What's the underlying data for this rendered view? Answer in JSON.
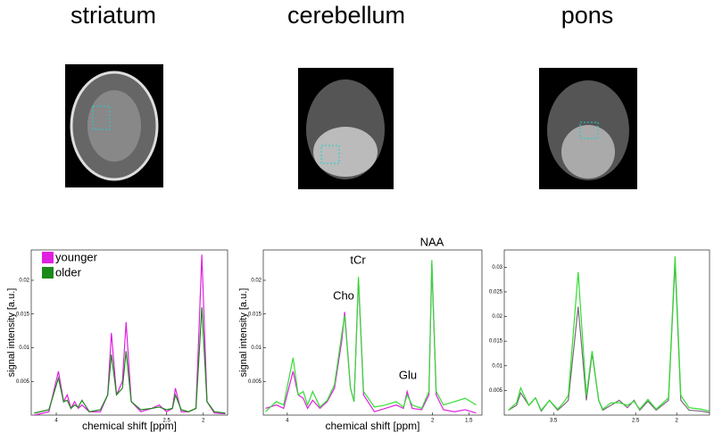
{
  "chart_data": [
    {
      "type": "line",
      "title": "striatum",
      "xlabel": "chemical shift [ppm]",
      "ylabel": "signal intensity [a.u.]",
      "x": [
        4.3,
        4.1,
        3.97,
        3.9,
        3.85,
        3.8,
        3.75,
        3.7,
        3.65,
        3.55,
        3.4,
        3.3,
        3.25,
        3.18,
        3.1,
        3.05,
        2.98,
        2.85,
        2.7,
        2.6,
        2.5,
        2.42,
        2.38,
        2.3,
        2.2,
        2.1,
        2.02,
        1.95,
        1.85,
        1.7
      ],
      "series": [
        {
          "name": "younger",
          "color": "#e020e0",
          "values": [
            0,
            0.0005,
            0.0065,
            0.002,
            0.003,
            0.001,
            0.002,
            0.001,
            0.0015,
            0.0005,
            0.0005,
            0.003,
            0.0122,
            0.003,
            0.005,
            0.0138,
            0.002,
            0.0005,
            0.001,
            0.0015,
            0.0005,
            0.001,
            0.004,
            0.0005,
            0.0005,
            0.001,
            0.0238,
            0.002,
            0.0003,
            0.0002
          ]
        },
        {
          "name": "older",
          "color": "#1a8a1a",
          "values": [
            0.0003,
            0.0008,
            0.0055,
            0.002,
            0.0022,
            0.001,
            0.0015,
            0.0012,
            0.0022,
            0.0005,
            0.0008,
            0.003,
            0.009,
            0.003,
            0.004,
            0.0095,
            0.002,
            0.0008,
            0.001,
            0.0012,
            0.0008,
            0.001,
            0.003,
            0.0008,
            0.0005,
            0.001,
            0.016,
            0.002,
            0.0005,
            0.0003
          ]
        }
      ],
      "xlim": [
        4.34,
        1.67
      ],
      "xticks": [
        4,
        2.5,
        2
      ],
      "ylim": [
        0,
        0.0245
      ],
      "yticks": [
        0.005,
        0.01,
        0.015,
        0.02
      ],
      "legend": "upper left"
    },
    {
      "type": "line",
      "title": "cerebellum",
      "xlabel": "chemical shift [ppm]",
      "ylabel": "signal intensity [a.u.]",
      "x": [
        4.3,
        4.15,
        4.05,
        3.92,
        3.85,
        3.78,
        3.72,
        3.65,
        3.55,
        3.45,
        3.35,
        3.25,
        3.21,
        3.13,
        3.08,
        3.02,
        2.95,
        2.8,
        2.65,
        2.5,
        2.4,
        2.35,
        2.28,
        2.15,
        2.05,
        2.01,
        1.95,
        1.85,
        1.7,
        1.55,
        1.4
      ],
      "series": [
        {
          "color": "#e020e0",
          "values": [
            0.001,
            0.0015,
            0.001,
            0.0065,
            0.003,
            0.0025,
            0.001,
            0.0022,
            0.001,
            0.002,
            0.004,
            0.011,
            0.0153,
            0.004,
            0.002,
            0.0202,
            0.003,
            0.0005,
            0.001,
            0.0015,
            0.001,
            0.0035,
            0.001,
            0.0008,
            0.003,
            0.0225,
            0.003,
            0.0008,
            0.0005,
            0.0008,
            0.0003
          ]
        },
        {
          "color": "#33dd33",
          "values": [
            0.0005,
            0.002,
            0.0015,
            0.0085,
            0.003,
            0.0035,
            0.0015,
            0.0035,
            0.0012,
            0.0022,
            0.0045,
            0.012,
            0.0148,
            0.004,
            0.002,
            0.0205,
            0.0035,
            0.0012,
            0.0015,
            0.002,
            0.0012,
            0.003,
            0.0015,
            0.001,
            0.0035,
            0.023,
            0.0035,
            0.0015,
            0.002,
            0.0025,
            0.0015
          ]
        }
      ],
      "xlim": [
        4.33,
        1.32
      ],
      "xticks": [
        4,
        2,
        1.5
      ],
      "ylim": [
        0,
        0.0245
      ],
      "yticks": [
        0.005,
        0.01,
        0.015,
        0.02
      ],
      "annotations": [
        "Cho",
        "tCr",
        "NAA",
        "Glu"
      ]
    },
    {
      "type": "line",
      "title": "pons",
      "x": [
        4.05,
        3.95,
        3.9,
        3.8,
        3.72,
        3.65,
        3.55,
        3.45,
        3.38,
        3.32,
        3.2,
        3.1,
        3.03,
        2.95,
        2.9,
        2.8,
        2.7,
        2.6,
        2.52,
        2.45,
        2.35,
        2.25,
        2.1,
        2.02,
        1.95,
        1.85,
        1.7,
        1.6
      ],
      "series": [
        {
          "color": "#7a6a7a",
          "values": [
            0.001,
            0.002,
            0.0045,
            0.002,
            0.0035,
            0.0008,
            0.003,
            0.001,
            0.002,
            0.003,
            0.022,
            0.003,
            0.0125,
            0.003,
            0.001,
            0.002,
            0.003,
            0.0015,
            0.003,
            0.001,
            0.0028,
            0.001,
            0.003,
            0.031,
            0.003,
            0.001,
            0.0008,
            0.0005
          ]
        },
        {
          "color": "#33dd33",
          "values": [
            0.001,
            0.0025,
            0.0055,
            0.002,
            0.0035,
            0.001,
            0.003,
            0.0012,
            0.0025,
            0.004,
            0.029,
            0.004,
            0.013,
            0.003,
            0.0012,
            0.0025,
            0.0025,
            0.002,
            0.0028,
            0.0012,
            0.0032,
            0.0012,
            0.0035,
            0.0322,
            0.004,
            0.0015,
            0.0012,
            0.0008
          ]
        }
      ],
      "xlim": [
        4.1,
        1.6
      ],
      "xticks": [
        3.5,
        2.5,
        2
      ],
      "ylim": [
        0,
        0.0335
      ],
      "yticks": [
        0.005,
        0.01,
        0.015,
        0.02,
        0.025,
        0.03
      ]
    }
  ]
}
